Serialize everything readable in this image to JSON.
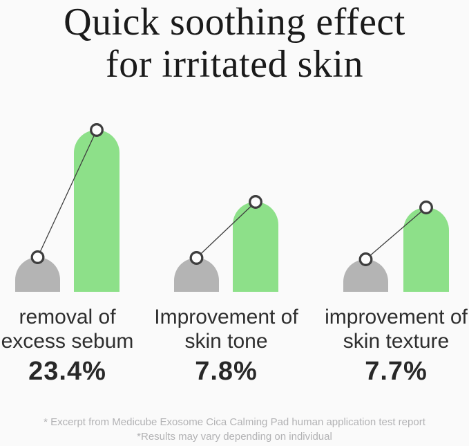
{
  "title": {
    "line1": "Quick soothing effect",
    "line2": "for irritated skin"
  },
  "chart_data": {
    "type": "bar",
    "title": "Quick soothing effect for irritated skin",
    "categories": [
      "removal of excess sebum",
      "Improvement of skin tone",
      "improvement of skin texture"
    ],
    "values": [
      23.4,
      7.8,
      7.7
    ],
    "unit": "%",
    "colors": {
      "before_bar": "#b4b4b4",
      "after_bar": "#8de089",
      "marker_ring": "#3e3e3e",
      "marker_fill": "#fdfdfd"
    },
    "legend_position": "none",
    "grid": false,
    "groups": [
      {
        "label_line1": "removal of",
        "label_line2": "excess sebum",
        "value_label": "23.4%",
        "bar_before_h": 50,
        "bar_after_h": 234
      },
      {
        "label_line1": "Improvement of",
        "label_line2": "skin tone",
        "value_label": "7.8%",
        "bar_before_h": 49,
        "bar_after_h": 130
      },
      {
        "label_line1": "improvement of",
        "label_line2": "skin texture",
        "value_label": "7.7%",
        "bar_before_h": 47,
        "bar_after_h": 122
      }
    ]
  },
  "footnotes": [
    "* Excerpt from Medicube Exosome Cica Calming Pad human application test report",
    "*Results may vary depending on individual"
  ]
}
